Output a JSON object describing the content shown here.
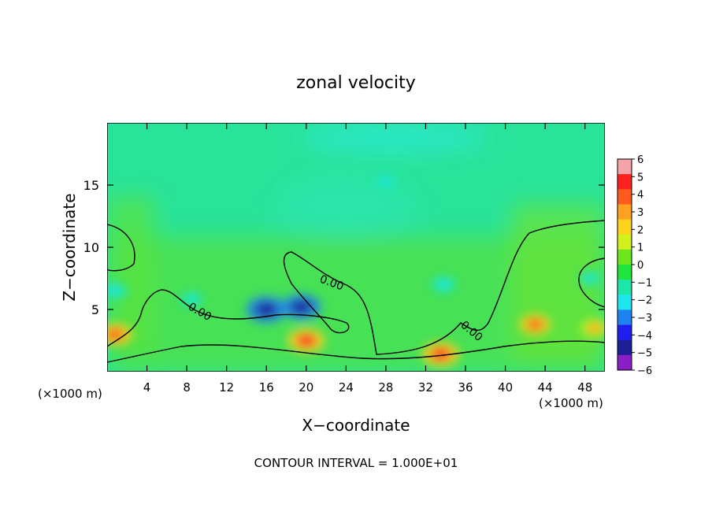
{
  "chart_data": {
    "type": "heatmap",
    "title": "zonal velocity",
    "xlabel": "X−coordinate",
    "ylabel": "Z−coordinate",
    "x_unit_left": "(×1000 m)",
    "x_unit_right": "(×1000 m)",
    "footer": "CONTOUR INTERVAL = 1.000E+01",
    "contour_label": "0.00",
    "xlim": [
      0,
      50
    ],
    "ylim": [
      0,
      20
    ],
    "x_ticks": [
      4,
      8,
      12,
      16,
      20,
      24,
      28,
      32,
      36,
      40,
      44,
      48
    ],
    "y_ticks": [
      5,
      10,
      15
    ],
    "colorbar": {
      "range": [
        -6,
        6
      ],
      "ticks": [
        6,
        5,
        4,
        3,
        2,
        1,
        0,
        -1,
        -2,
        -3,
        -4,
        -5,
        -6
      ],
      "tick_labels": [
        "6",
        "5",
        "4",
        "3",
        "2",
        "1",
        "0",
        "−1",
        "−2",
        "−3",
        "−4",
        "−5",
        "−6"
      ],
      "colors": [
        "#f4a3a8",
        "#ff2020",
        "#ff5a1e",
        "#ffa020",
        "#ffd21e",
        "#d2f01e",
        "#6ee61e",
        "#1ee63c",
        "#1ee6aa",
        "#1ee6f0",
        "#1e82f0",
        "#1e1ef0",
        "#1e1e96",
        "#8c1ec8"
      ]
    },
    "features": [
      {
        "x": 16.0,
        "z": 5.0,
        "value": -5.0
      },
      {
        "x": 19.5,
        "z": 5.2,
        "value": -4.8
      },
      {
        "x": 20.0,
        "z": 2.5,
        "value": 4.5
      },
      {
        "x": 0.8,
        "z": 3.0,
        "value": 4.0
      },
      {
        "x": 0.8,
        "z": 6.5,
        "value": -2.5
      },
      {
        "x": 33.5,
        "z": 1.4,
        "value": 4.5
      },
      {
        "x": 33.8,
        "z": 7.0,
        "value": -2.5
      },
      {
        "x": 28.0,
        "z": 15.3,
        "value": -2.0
      },
      {
        "x": 43.0,
        "z": 3.8,
        "value": 3.5
      },
      {
        "x": 49.0,
        "z": 3.5,
        "value": 3.0
      },
      {
        "x": 8.5,
        "z": 5.8,
        "value": -2.0
      },
      {
        "x": 48.5,
        "z": 7.5,
        "value": -2.0
      }
    ]
  }
}
